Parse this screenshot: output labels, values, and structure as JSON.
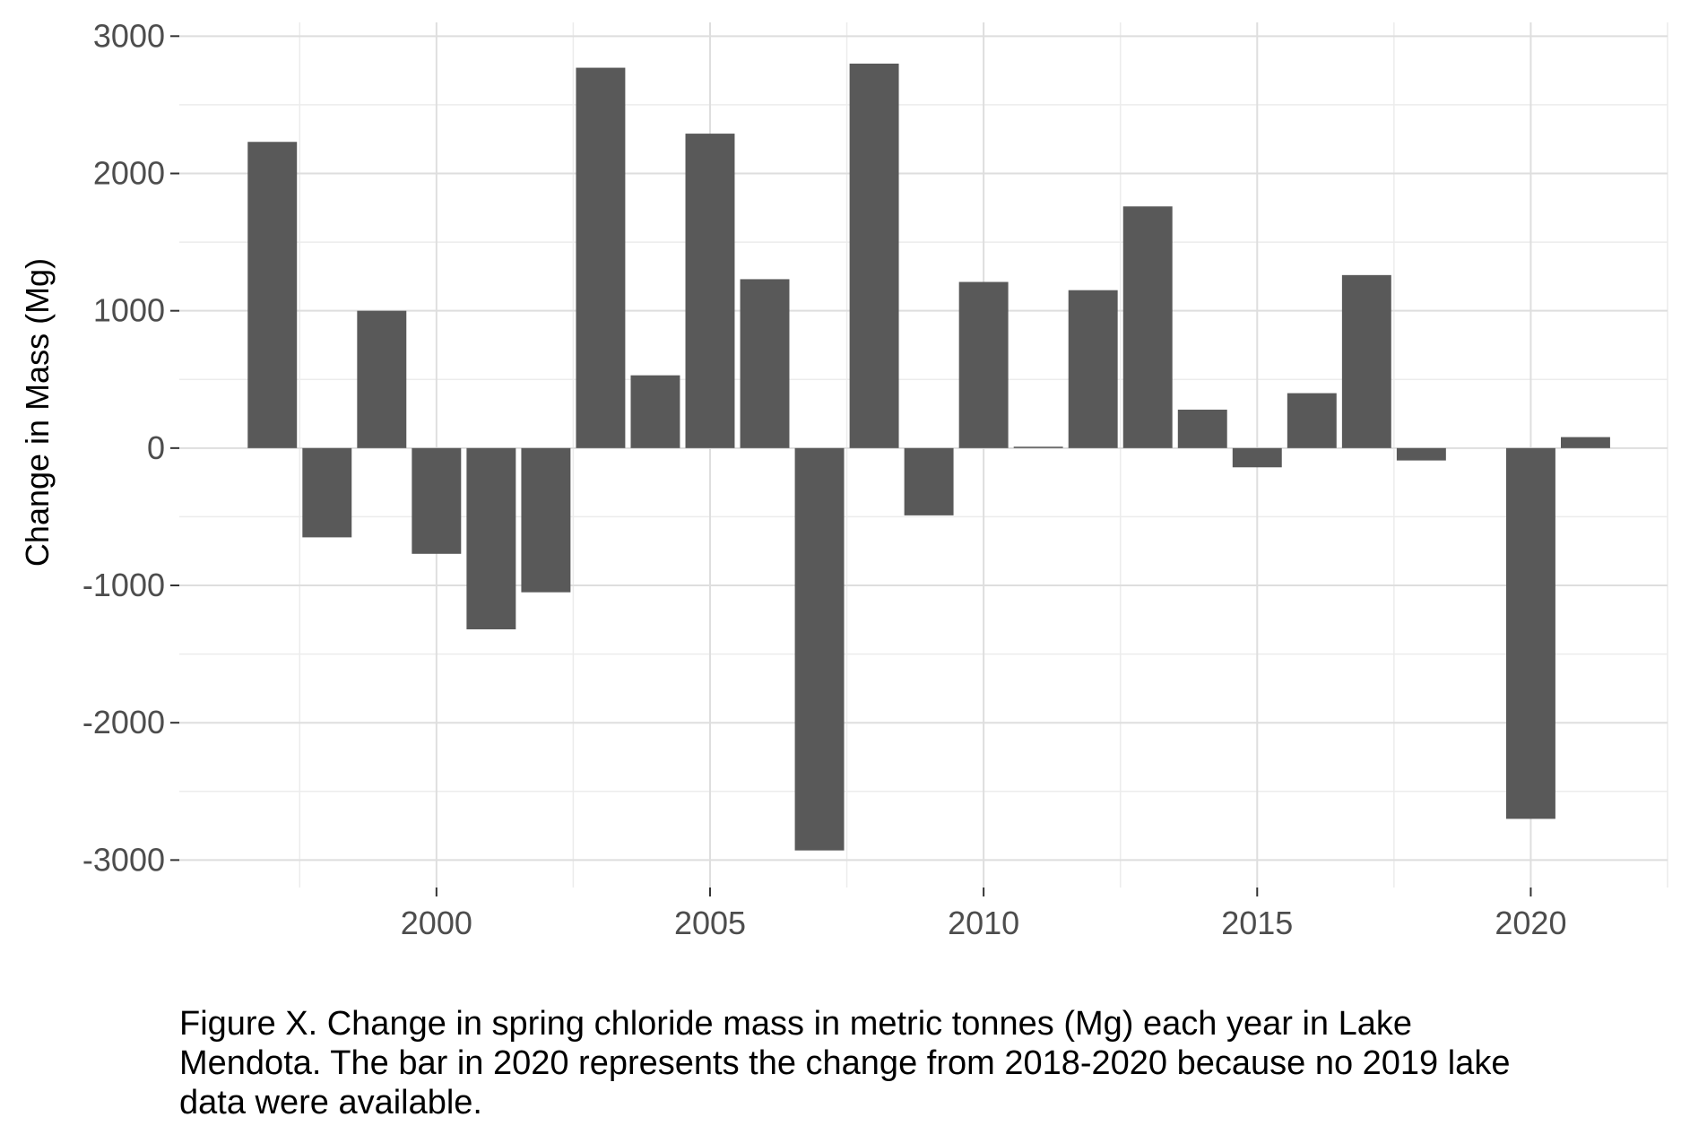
{
  "chart_data": {
    "type": "bar",
    "title": "",
    "xlabel": "",
    "ylabel": "Change in Mass (Mg)",
    "x": [
      1997,
      1998,
      1999,
      2000,
      2001,
      2002,
      2003,
      2004,
      2005,
      2006,
      2007,
      2008,
      2009,
      2010,
      2011,
      2012,
      2013,
      2014,
      2015,
      2016,
      2017,
      2018,
      2020,
      2021
    ],
    "values": [
      2230,
      -650,
      1000,
      -770,
      -1320,
      -1050,
      2770,
      530,
      2290,
      1230,
      -2930,
      2800,
      -490,
      1210,
      10,
      1150,
      1760,
      280,
      -140,
      400,
      1260,
      -90,
      -2700,
      80
    ],
    "xlim": [
      1995.3,
      2022.5
    ],
    "ylim": [
      -3200,
      3100
    ],
    "x_ticks": [
      2000,
      2005,
      2010,
      2015,
      2020
    ],
    "x_tick_labels": [
      "2000",
      "2005",
      "2010",
      "2015",
      "2020"
    ],
    "y_ticks": [
      -3000,
      -2000,
      -1000,
      0,
      1000,
      2000,
      3000
    ],
    "y_tick_labels": [
      "-3000",
      "-2000",
      "-1000",
      "0",
      "1000",
      "2000",
      "3000"
    ],
    "grid": true,
    "legend": "none",
    "bar_color": "#595959",
    "grid_major_color": "#dedede",
    "grid_minor_color": "#ececec",
    "tick_label_color": "#4d4d4d"
  },
  "caption": {
    "line1": "Figure X. Change in spring chloride mass in metric tonnes (Mg) each year in Lake",
    "line2": "Mendota. The bar in 2020 represents the change from 2018-2020 because no 2019 lake",
    "line3": "data were available."
  }
}
